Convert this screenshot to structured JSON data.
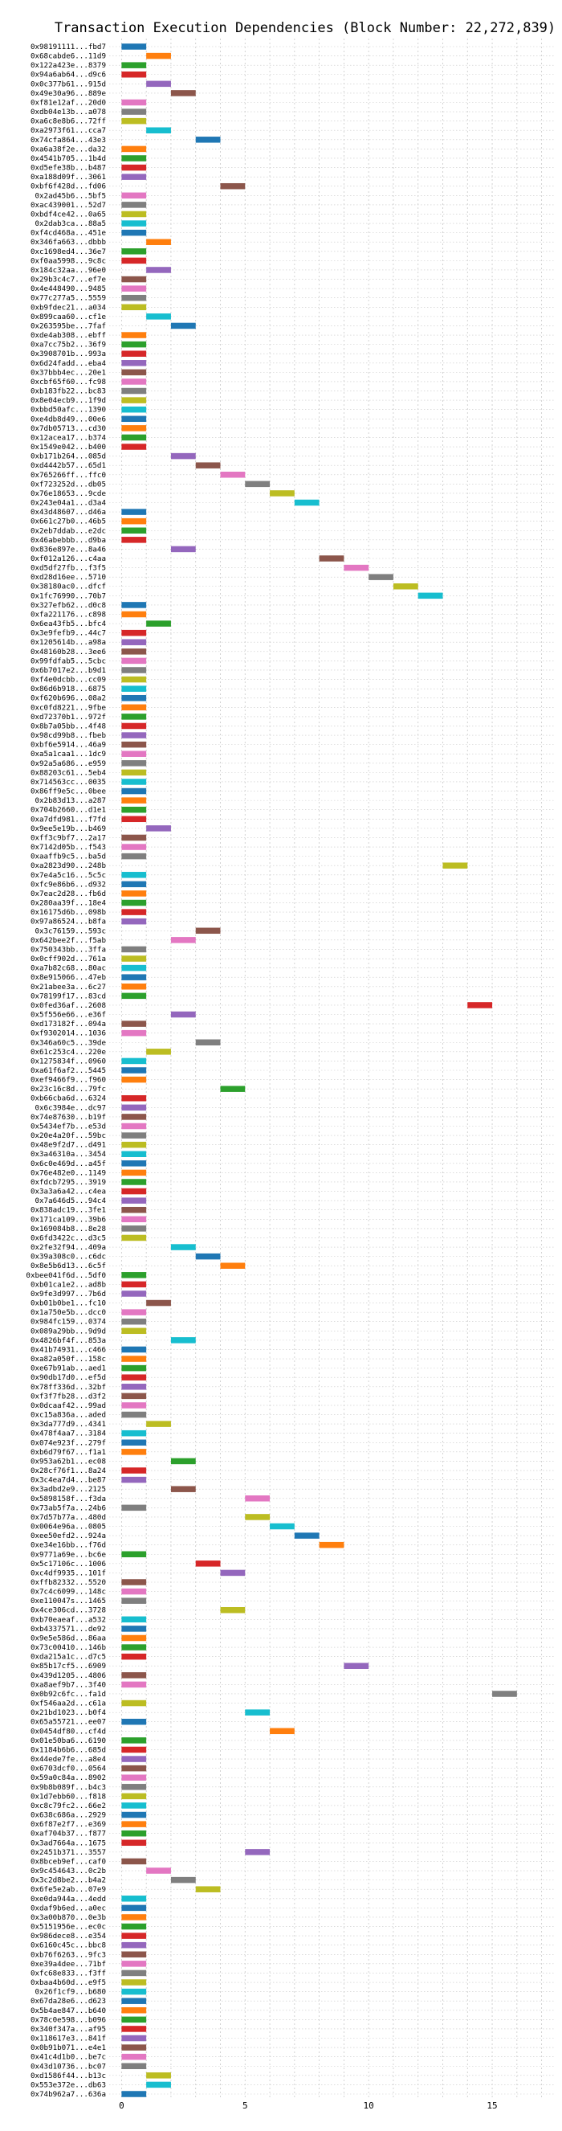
{
  "chart_data": {
    "type": "bar",
    "orientation": "horizontal-gantt",
    "title": "Transaction Execution Dependencies (Block Number: 22,272,839)",
    "xlabel": "",
    "ylabel": "",
    "xlim": [
      -0.5,
      17.5
    ],
    "xticks": [
      0,
      5,
      10,
      15
    ],
    "grid": true,
    "legend": "none",
    "palette": [
      "#1f77b4",
      "#ff7f0e",
      "#2ca02c",
      "#d62728",
      "#9467bd",
      "#8c564b",
      "#e377c2",
      "#7f7f7f",
      "#bcbd22",
      "#17becf"
    ],
    "transactions": [
      {
        "label": "0x98191111...fbd7",
        "start": 0
      },
      {
        "label": "0x68cabde6...11d9",
        "start": 1
      },
      {
        "label": "0x122a423e...8379",
        "start": 0
      },
      {
        "label": "0x94a6ab64...d9c6",
        "start": 0
      },
      {
        "label": "0x0c377b61...915d",
        "start": 1
      },
      {
        "label": "0x49e30a96...889e",
        "start": 2
      },
      {
        "label": "0xf81e12af...20d0",
        "start": 0
      },
      {
        "label": "0xdb04e13b...a078",
        "start": 0
      },
      {
        "label": "0xa6c8e8b6...72ff",
        "start": 0
      },
      {
        "label": "0xa2973f61...cca7",
        "start": 1
      },
      {
        "label": "0x74cfa864...43e3",
        "start": 3
      },
      {
        "label": "0xa6a38f2e...da32",
        "start": 0
      },
      {
        "label": "0x4541b705...1b4d",
        "start": 0
      },
      {
        "label": "0xd5efe38b...b487",
        "start": 0
      },
      {
        "label": "0xa188d09f...3061",
        "start": 0
      },
      {
        "label": "0xbf6f428d...fd06",
        "start": 4
      },
      {
        "label": "0x2ad45b6...5bf5",
        "start": 0
      },
      {
        "label": "0xac439001...52d7",
        "start": 0
      },
      {
        "label": "0xbdf4ce42...0a65",
        "start": 0
      },
      {
        "label": "0x2dab3ca...88a5",
        "start": 0
      },
      {
        "label": "0xf4cd468a...451e",
        "start": 0
      },
      {
        "label": "0x346fa663...dbbb",
        "start": 1
      },
      {
        "label": "0xc1698ed4...36e7",
        "start": 0
      },
      {
        "label": "0xf0aa5998...9c8c",
        "start": 0
      },
      {
        "label": "0x184c32aa...96e0",
        "start": 1
      },
      {
        "label": "0x29b3c4c7...ef7e",
        "start": 0
      },
      {
        "label": "0x4e448490...9485",
        "start": 0
      },
      {
        "label": "0x77c277a5...5559",
        "start": 0
      },
      {
        "label": "0xb9fdec21...a034",
        "start": 0
      },
      {
        "label": "0x899caa60...cf1e",
        "start": 1
      },
      {
        "label": "0x263595be...7faf",
        "start": 2
      },
      {
        "label": "0xde4ab308...ebff",
        "start": 0
      },
      {
        "label": "0xa7cc75b2...36f9",
        "start": 0
      },
      {
        "label": "0x3908701b...993a",
        "start": 0
      },
      {
        "label": "0x6d24fadd...eba4",
        "start": 0
      },
      {
        "label": "0x37bbb4ec...20e1",
        "start": 0
      },
      {
        "label": "0xcbf65f60...fc98",
        "start": 0
      },
      {
        "label": "0xb183fb22...bc83",
        "start": 0
      },
      {
        "label": "0x8e04ecb9...1f9d",
        "start": 0
      },
      {
        "label": "0xbbd50afc...1390",
        "start": 0
      },
      {
        "label": "0xe4db8d49...00e6",
        "start": 0
      },
      {
        "label": "0x7db05713...cd30",
        "start": 0
      },
      {
        "label": "0x12acea17...b374",
        "start": 0
      },
      {
        "label": "0x1549e042...b400",
        "start": 0
      },
      {
        "label": "0xb171b264...085d",
        "start": 2
      },
      {
        "label": "0xd4442b57...65d1",
        "start": 3
      },
      {
        "label": "0x765266ff...ffc0",
        "start": 4
      },
      {
        "label": "0xf723252d...db05",
        "start": 5
      },
      {
        "label": "0x76e18653...9cde",
        "start": 6
      },
      {
        "label": "0x243e04a1...d3a4",
        "start": 7
      },
      {
        "label": "0x43d48607...d46a",
        "start": 0
      },
      {
        "label": "0x661c27b0...46b5",
        "start": 0
      },
      {
        "label": "0x2eb7ddab...e2dc",
        "start": 0
      },
      {
        "label": "0x46abebbb...d9ba",
        "start": 0
      },
      {
        "label": "0x836e897e...8a46",
        "start": 2
      },
      {
        "label": "0xf012a126...c4aa",
        "start": 8
      },
      {
        "label": "0xd5df27fb...f3f5",
        "start": 9
      },
      {
        "label": "0xd28d16ee...5710",
        "start": 10
      },
      {
        "label": "0x38180ac0...dfcf",
        "start": 11
      },
      {
        "label": "0x1fc76990...70b7",
        "start": 12
      },
      {
        "label": "0x327efb62...d0c8",
        "start": 0
      },
      {
        "label": "0xfa221176...c898",
        "start": 0
      },
      {
        "label": "0x6ea43fb5...bfc4",
        "start": 1
      },
      {
        "label": "0x3e9fefb9...44c7",
        "start": 0
      },
      {
        "label": "0x1205614b...a98a",
        "start": 0
      },
      {
        "label": "0x48160b28...3ee6",
        "start": 0
      },
      {
        "label": "0x99fdfab5...5cbc",
        "start": 0
      },
      {
        "label": "0x6b7017e2...b9d1",
        "start": 0
      },
      {
        "label": "0xf4e0dcbb...cc09",
        "start": 0
      },
      {
        "label": "0x86d6b918...6875",
        "start": 0
      },
      {
        "label": "0xf620b696...08a2",
        "start": 0
      },
      {
        "label": "0xc0fd8221...9fbe",
        "start": 0
      },
      {
        "label": "0xd72370b1...972f",
        "start": 0
      },
      {
        "label": "0x8b7a05bb...4f48",
        "start": 0
      },
      {
        "label": "0x98cd99b8...fbeb",
        "start": 0
      },
      {
        "label": "0xbf6e5914...46a9",
        "start": 0
      },
      {
        "label": "0xa5a1caa1...1dc9",
        "start": 0
      },
      {
        "label": "0x92a5a686...e959",
        "start": 0
      },
      {
        "label": "0x88203c61...5eb4",
        "start": 0
      },
      {
        "label": "0x714563cc...0035",
        "start": 0
      },
      {
        "label": "0x86ff9e5c...0bee",
        "start": 0
      },
      {
        "label": "0x2b83d13...a287",
        "start": 0
      },
      {
        "label": "0x704b2660...d1e1",
        "start": 0
      },
      {
        "label": "0xa7dfd981...f7fd",
        "start": 0
      },
      {
        "label": "0x9ee5e19b...b469",
        "start": 1
      },
      {
        "label": "0xff3c9bf7...2a17",
        "start": 0
      },
      {
        "label": "0x7142d05b...f543",
        "start": 0
      },
      {
        "label": "0xaaffb9c5...ba5d",
        "start": 0
      },
      {
        "label": "0xa2823d90...248b",
        "start": 13
      },
      {
        "label": "0x7e4a5c16...5c5c",
        "start": 0
      },
      {
        "label": "0xfc9e86b6...d932",
        "start": 0
      },
      {
        "label": "0x7eac2d28...fb6d",
        "start": 0
      },
      {
        "label": "0x280aa39f...18e4",
        "start": 0
      },
      {
        "label": "0x16175d6b...098b",
        "start": 0
      },
      {
        "label": "0x97a86524...b8fa",
        "start": 0
      },
      {
        "label": "0x3c76159...593c",
        "start": 3
      },
      {
        "label": "0x642bee2f...f5ab",
        "start": 2
      },
      {
        "label": "0x750343bb...3ffa",
        "start": 0
      },
      {
        "label": "0x0cff902d...761a",
        "start": 0
      },
      {
        "label": "0xa7b82c68...80ac",
        "start": 0
      },
      {
        "label": "0x8e915066...47eb",
        "start": 0
      },
      {
        "label": "0x21abee3a...6c27",
        "start": 0
      },
      {
        "label": "0x78199f17...83cd",
        "start": 0
      },
      {
        "label": "0x0fed36af...2608",
        "start": 14
      },
      {
        "label": "0x5f556e66...e36f",
        "start": 2
      },
      {
        "label": "0xd173182f...094a",
        "start": 0
      },
      {
        "label": "0xf9302014...1036",
        "start": 0
      },
      {
        "label": "0x346a60c5...39de",
        "start": 3
      },
      {
        "label": "0x61c253c4...220e",
        "start": 1
      },
      {
        "label": "0x1275834f...0960",
        "start": 0
      },
      {
        "label": "0xa61f6af2...5445",
        "start": 0
      },
      {
        "label": "0xef9466f9...f960",
        "start": 0
      },
      {
        "label": "0x23c16c8d...79fc",
        "start": 4
      },
      {
        "label": "0xb66cba6d...6324",
        "start": 0
      },
      {
        "label": "0x6c3984e...dc97",
        "start": 0
      },
      {
        "label": "0x74e87630...b19f",
        "start": 0
      },
      {
        "label": "0x5434ef7b...e53d",
        "start": 0
      },
      {
        "label": "0x20e4a20f...59bc",
        "start": 0
      },
      {
        "label": "0x48e9f2d7...d491",
        "start": 0
      },
      {
        "label": "0x3a46310a...3454",
        "start": 0
      },
      {
        "label": "0x6c0e469d...a45f",
        "start": 0
      },
      {
        "label": "0x76e482e0...1149",
        "start": 0
      },
      {
        "label": "0xfdcb7295...3919",
        "start": 0
      },
      {
        "label": "0x3a3a6a42...c4ea",
        "start": 0
      },
      {
        "label": "0x7a646d5...94c4",
        "start": 0
      },
      {
        "label": "0x838adc19...3fe1",
        "start": 0
      },
      {
        "label": "0x171ca109...39b6",
        "start": 0
      },
      {
        "label": "0x169084b8...8e28",
        "start": 0
      },
      {
        "label": "0x6fd3422c...d3c5",
        "start": 0
      },
      {
        "label": "0x2fe32f94...409a",
        "start": 2
      },
      {
        "label": "0x39a308c0...c6dc",
        "start": 3
      },
      {
        "label": "0x8e5b6d13...6c5f",
        "start": 4
      },
      {
        "label": "0xbee041f6d...5df0",
        "start": 0
      },
      {
        "label": "0xb01ca1e2...ad8b",
        "start": 0
      },
      {
        "label": "0x9fe3d997...7b6d",
        "start": 0
      },
      {
        "label": "0xb01b0be1...fc10",
        "start": 1
      },
      {
        "label": "0x1a750e5b...dcc0",
        "start": 0
      },
      {
        "label": "0x984fc159...0374",
        "start": 0
      },
      {
        "label": "0x089a29bb...9d9d",
        "start": 0
      },
      {
        "label": "0x4826bf4f...853a",
        "start": 2
      },
      {
        "label": "0x41b74931...c466",
        "start": 0
      },
      {
        "label": "0xa82a050f...158c",
        "start": 0
      },
      {
        "label": "0xe67b91ab...aed1",
        "start": 0
      },
      {
        "label": "0x90db17d0...ef5d",
        "start": 0
      },
      {
        "label": "0x78ff336d...32bf",
        "start": 0
      },
      {
        "label": "0xf3f7fb28...d3f2",
        "start": 0
      },
      {
        "label": "0x0dcaaf42...99ad",
        "start": 0
      },
      {
        "label": "0xc15a836a...aded",
        "start": 0
      },
      {
        "label": "0x3da777d9...4341",
        "start": 1
      },
      {
        "label": "0x478f4aa7...3184",
        "start": 0
      },
      {
        "label": "0x074e923f...279f",
        "start": 0
      },
      {
        "label": "0xb6d79f67...f1a1",
        "start": 0
      },
      {
        "label": "0x953a62b1...ec08",
        "start": 2
      },
      {
        "label": "0x28cf76f1...8a24",
        "start": 0
      },
      {
        "label": "0x3c4ea7d4...be87",
        "start": 0
      },
      {
        "label": "0x3adbd2e9...2125",
        "start": 2
      },
      {
        "label": "0x5898158f...f3da",
        "start": 5
      },
      {
        "label": "0x73ab5f7a...24b6",
        "start": 0
      },
      {
        "label": "0x7d57b77a...480d",
        "start": 5
      },
      {
        "label": "0x0064e96a...0805",
        "start": 6
      },
      {
        "label": "0xee50efd2...924a",
        "start": 7
      },
      {
        "label": "0xe34e16bb...f76d",
        "start": 8
      },
      {
        "label": "0x9771a69e...bc6e",
        "start": 0
      },
      {
        "label": "0x5c17106c...1006",
        "start": 3
      },
      {
        "label": "0xc4df9935...101f",
        "start": 4
      },
      {
        "label": "0xffb82332...5520",
        "start": 0
      },
      {
        "label": "0x7c4c6099...148c",
        "start": 0
      },
      {
        "label": "0xe110047s...1465",
        "start": 0
      },
      {
        "label": "0x4ce306cd...3728",
        "start": 4
      },
      {
        "label": "0xb70eaeaf...a532",
        "start": 0
      },
      {
        "label": "0xb4337571...de92",
        "start": 0
      },
      {
        "label": "0x9e5e586d...86aa",
        "start": 0
      },
      {
        "label": "0x73c00410...146b",
        "start": 0
      },
      {
        "label": "0xda215a1c...d7c5",
        "start": 0
      },
      {
        "label": "0x85b17cf5...6909",
        "start": 9
      },
      {
        "label": "0x439d1205...4806",
        "start": 0
      },
      {
        "label": "0xa8aef9b7...3f40",
        "start": 0
      },
      {
        "label": "0x0b92c6fc...fa1d",
        "start": 15
      },
      {
        "label": "0xf546aa2d...c61a",
        "start": 0
      },
      {
        "label": "0x21bd1023...b0f4",
        "start": 5
      },
      {
        "label": "0x65a55721...ee07",
        "start": 0
      },
      {
        "label": "0x0454df80...cf4d",
        "start": 6
      },
      {
        "label": "0x01e50ba6...6190",
        "start": 0
      },
      {
        "label": "0x1184b6b6...685d",
        "start": 0
      },
      {
        "label": "0x44ede7fe...a8e4",
        "start": 0
      },
      {
        "label": "0x6703dcf0...0564",
        "start": 0
      },
      {
        "label": "0x59a0c84a...8902",
        "start": 0
      },
      {
        "label": "0x9b8b089f...b4c3",
        "start": 0
      },
      {
        "label": "0x1d7ebb60...f818",
        "start": 0
      },
      {
        "label": "0xc8c79fc2...66e2",
        "start": 0
      },
      {
        "label": "0x638c686a...2929",
        "start": 0
      },
      {
        "label": "0x6f87e2f7...e369",
        "start": 0
      },
      {
        "label": "0xaf704b37...f877",
        "start": 0
      },
      {
        "label": "0x3ad7664a...1675",
        "start": 0
      },
      {
        "label": "0x2451b371...3557",
        "start": 5
      },
      {
        "label": "0x8bceb9ef...caf0",
        "start": 0
      },
      {
        "label": "0x9c454643...0c2b",
        "start": 1
      },
      {
        "label": "0x3c2d8be2...b4a2",
        "start": 2
      },
      {
        "label": "0x6fe5e2ab...07e9",
        "start": 3
      },
      {
        "label": "0xe0da944a...4edd",
        "start": 0
      },
      {
        "label": "0xdaf9b6ed...a0ec",
        "start": 0
      },
      {
        "label": "0x3a00b870...0e3b",
        "start": 0
      },
      {
        "label": "0x5151956e...ec0c",
        "start": 0
      },
      {
        "label": "0x986dece8...e354",
        "start": 0
      },
      {
        "label": "0x6160c45c...bbc8",
        "start": 0
      },
      {
        "label": "0xb76f6263...9fc3",
        "start": 0
      },
      {
        "label": "0xe39a4dee...71bf",
        "start": 0
      },
      {
        "label": "0xfc68e833...f3ff",
        "start": 0
      },
      {
        "label": "0xbaa4b60d...e9f5",
        "start": 0
      },
      {
        "label": "0x26f1cf9...b680",
        "start": 0
      },
      {
        "label": "0x67da28e6...d623",
        "start": 0
      },
      {
        "label": "0x5b4ae847...b640",
        "start": 0
      },
      {
        "label": "0x78c0e598...b096",
        "start": 0
      },
      {
        "label": "0x340f347a...af95",
        "start": 0
      },
      {
        "label": "0x118617e3...841f",
        "start": 0
      },
      {
        "label": "0x0b91b071...e4e1",
        "start": 0
      },
      {
        "label": "0x41c4d1b0...be7c",
        "start": 0
      },
      {
        "label": "0x43d10736...bc07",
        "start": 0
      },
      {
        "label": "0xd1586f44...b13c",
        "start": 1
      },
      {
        "label": "0x553e372e...db63",
        "start": 1
      },
      {
        "label": "0x74b962a7...636a",
        "start": 0
      }
    ]
  }
}
